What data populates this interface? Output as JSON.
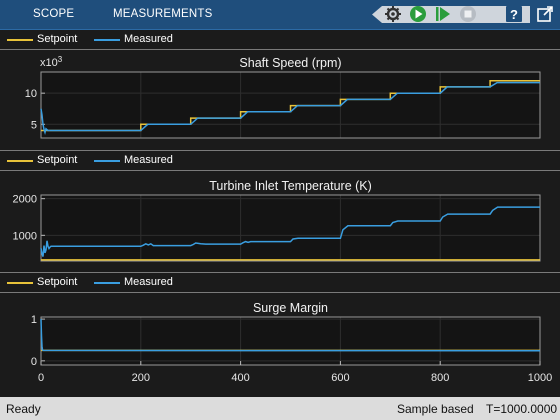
{
  "toolstrip": {
    "tabs": [
      {
        "label": "SCOPE"
      },
      {
        "label": "MEASUREMENTS"
      }
    ],
    "tools": [
      "settings-gear-icon",
      "run-icon",
      "step-forward-icon",
      "stop-icon",
      "help-icon",
      "undock-icon"
    ]
  },
  "legend": {
    "setpoint_label": "Setpoint",
    "measured_label": "Measured",
    "setpoint_color": "#e8c33a",
    "measured_color": "#3a9ee0"
  },
  "colors": {
    "background": "#1b1b1b",
    "axes_background": "#141414",
    "grid": "#2e2e2e",
    "toolstrip": "#1f4e7c",
    "statusbar": "#dcdcdc"
  },
  "chart_data": [
    {
      "type": "line",
      "title": "Shaft Speed (rpm)",
      "exponent_label": "x10",
      "exponent_power": "3",
      "xlim": [
        0,
        1000
      ],
      "ylim": [
        2.8,
        13.4
      ],
      "yticks": [
        5,
        10
      ],
      "series": [
        {
          "name": "Setpoint",
          "color": "#e8c33a",
          "x": [
            0,
            200,
            200,
            300,
            300,
            400,
            400,
            500,
            500,
            600,
            600,
            700,
            700,
            800,
            800,
            900,
            900,
            1000
          ],
          "y": [
            4,
            4,
            5,
            5,
            6,
            6,
            7,
            7,
            8,
            8,
            9,
            9,
            10,
            10,
            11,
            11,
            12,
            12
          ]
        },
        {
          "name": "Measured",
          "color": "#3a9ee0",
          "x": [
            0,
            2,
            4,
            6,
            8,
            10,
            14,
            200,
            214,
            300,
            314,
            400,
            414,
            500,
            514,
            600,
            614,
            700,
            714,
            800,
            814,
            900,
            914,
            1000
          ],
          "y": [
            7.5,
            6.5,
            5.0,
            4.2,
            3.7,
            4.3,
            4.0,
            4.0,
            5.0,
            5.0,
            6.0,
            6.0,
            7.0,
            7.0,
            8.0,
            8.0,
            9.0,
            9.0,
            10.0,
            10.0,
            11.0,
            11.0,
            11.7,
            11.7
          ]
        }
      ]
    },
    {
      "type": "line",
      "title": "Turbine Inlet Temperature (K)",
      "xlim": [
        0,
        1000
      ],
      "ylim": [
        300,
        2100
      ],
      "yticks": [
        1000,
        2000
      ],
      "series": [
        {
          "name": "Setpoint",
          "color": "#e8c33a",
          "x": [
            0,
            1000
          ],
          "y": [
            330,
            330
          ]
        },
        {
          "name": "Measured",
          "color": "#3a9ee0",
          "x": [
            0,
            2,
            4,
            6,
            8,
            10,
            12,
            14,
            16,
            18,
            20,
            200,
            205,
            210,
            215,
            220,
            225,
            230,
            300,
            305,
            310,
            320,
            330,
            400,
            405,
            410,
            415,
            420,
            500,
            505,
            515,
            600,
            605,
            615,
            700,
            705,
            715,
            800,
            805,
            815,
            900,
            905,
            915,
            1000
          ],
          "y": [
            650,
            500,
            420,
            720,
            520,
            600,
            850,
            700,
            640,
            680,
            700,
            700,
            730,
            770,
            740,
            770,
            720,
            720,
            720,
            750,
            790,
            770,
            760,
            760,
            800,
            830,
            810,
            830,
            830,
            900,
            920,
            920,
            1150,
            1260,
            1260,
            1350,
            1390,
            1390,
            1500,
            1580,
            1580,
            1680,
            1770,
            1770
          ]
        }
      ]
    },
    {
      "type": "line",
      "title": "Surge Margin",
      "xlim": [
        0,
        1000
      ],
      "xticks": [
        0,
        200,
        400,
        600,
        800,
        1000
      ],
      "ylim": [
        -0.1,
        1.05
      ],
      "yticks": [
        0,
        1
      ],
      "series": [
        {
          "name": "Setpoint",
          "color": "#e8c33a",
          "x": [
            0,
            1000
          ],
          "y": [
            0.25,
            0.25
          ]
        },
        {
          "name": "Measured",
          "color": "#3a9ee0",
          "x": [
            0,
            1,
            2,
            3,
            5,
            1000
          ],
          "y": [
            1.0,
            0.6,
            0.35,
            0.26,
            0.25,
            0.24
          ]
        }
      ]
    }
  ],
  "status": {
    "ready": "Ready",
    "mode": "Sample based",
    "time": "T=1000.0000"
  }
}
